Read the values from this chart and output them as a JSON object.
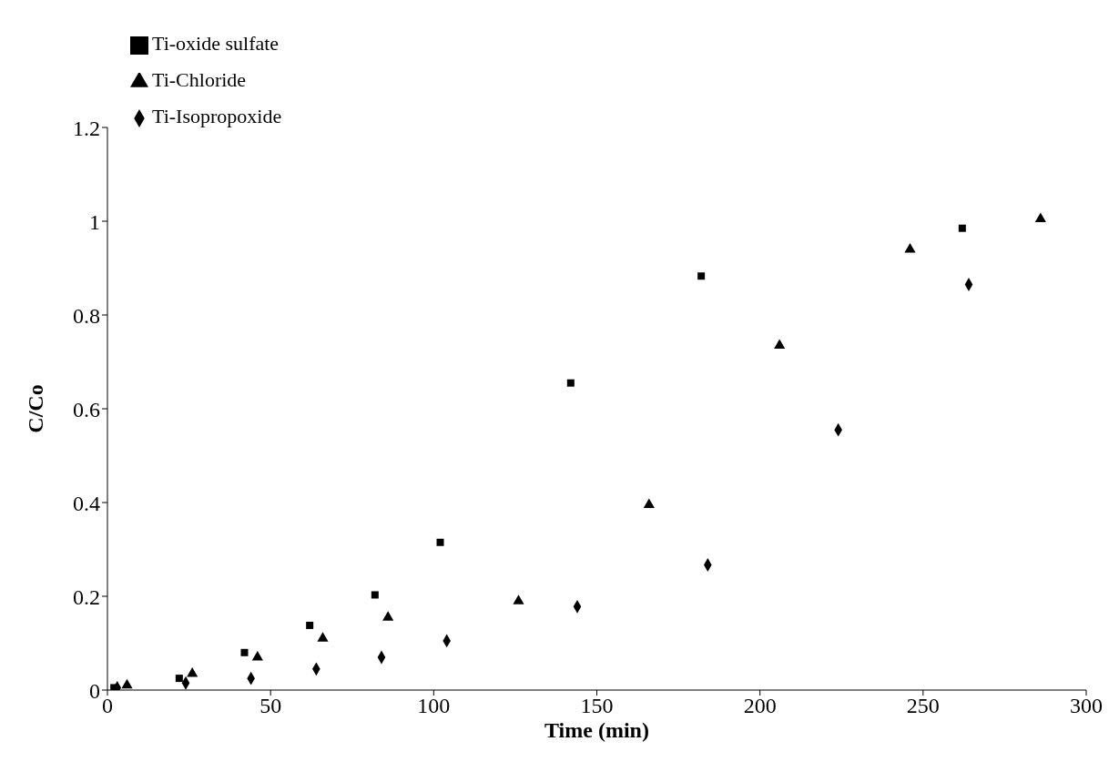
{
  "chart_data": {
    "type": "scatter",
    "xlabel": "Time (min)",
    "ylabel": "C/Co",
    "xlim": [
      0,
      300
    ],
    "xticks": [
      0,
      50,
      100,
      150,
      200,
      250,
      300
    ],
    "ylim": [
      0,
      1.2
    ],
    "yticks": [
      0,
      0.2,
      0.4,
      0.6,
      0.8,
      1,
      1.2
    ],
    "grid": false,
    "legend": "top left",
    "series": [
      {
        "name": "Ti-oxide sulfate",
        "color": "#000000",
        "marker": "square",
        "x": [
          2,
          22,
          42,
          62,
          82,
          102,
          142,
          182,
          262
        ],
        "values": [
          0.005,
          0.025,
          0.08,
          0.138,
          0.203,
          0.315,
          0.655,
          0.883,
          0.985
        ]
      },
      {
        "name": "Ti-Chloride",
        "color": "#000000",
        "marker": "triangle",
        "x": [
          6,
          26,
          46,
          66,
          86,
          126,
          166,
          206,
          246,
          286
        ],
        "values": [
          0.01,
          0.035,
          0.07,
          0.11,
          0.155,
          0.19,
          0.395,
          0.735,
          0.94,
          1.005
        ]
      },
      {
        "name": "Ti-Isopropoxide",
        "color": "#000000",
        "marker": "diamond",
        "x": [
          3,
          24,
          44,
          64,
          84,
          104,
          144,
          184,
          224,
          264
        ],
        "values": [
          0.005,
          0.015,
          0.025,
          0.045,
          0.07,
          0.105,
          0.178,
          0.267,
          0.555,
          0.865
        ]
      }
    ]
  }
}
